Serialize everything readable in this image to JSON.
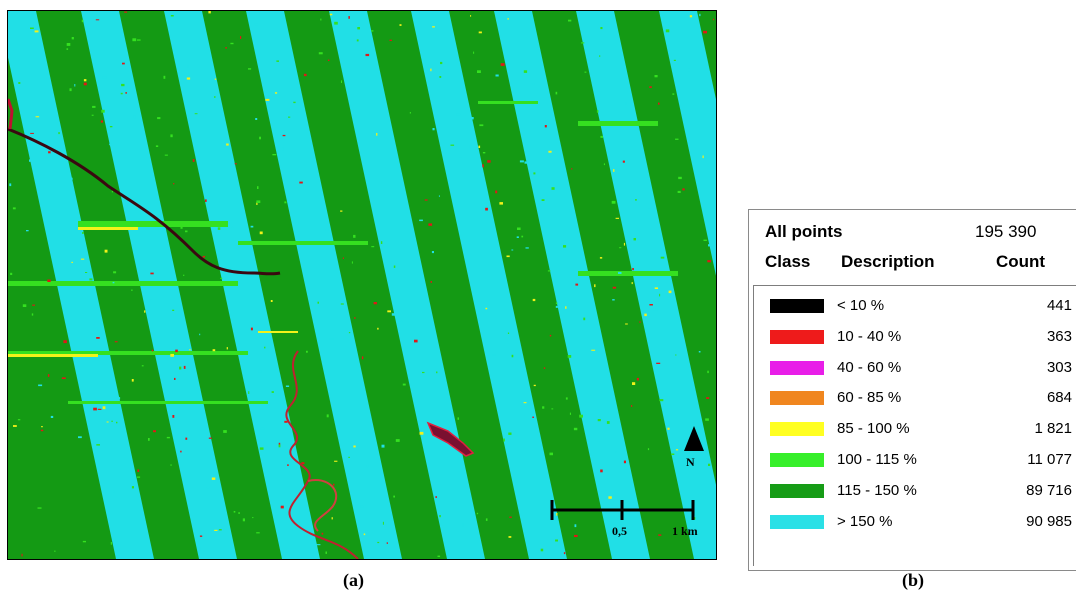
{
  "panel_a": {
    "caption": "(a)",
    "north_label": "N",
    "scale_label_mid": "0,5",
    "scale_label_end": "1 km",
    "colors": {
      "cyan": "#21dfe6",
      "dark_green": "#149a14",
      "light_green": "#35e020",
      "yellow": "#f2f21a",
      "red": "#e01818",
      "magenta": "#e020e0",
      "black": "#000000"
    }
  },
  "panel_b": {
    "caption": "(b)",
    "all_points_label": "All points",
    "all_points_count": "195 390",
    "header": {
      "class": "Class",
      "description": "Description",
      "count": "Count"
    },
    "rows": [
      {
        "color": "#000000",
        "description": "< 10 %",
        "count": "441"
      },
      {
        "color": "#ee1b1b",
        "description": "10 - 40 %",
        "count": "363"
      },
      {
        "color": "#e81ee8",
        "description": "40 - 60 %",
        "count": "303"
      },
      {
        "color": "#f0861f",
        "description": "60 - 85 %",
        "count": "684"
      },
      {
        "color": "#ffff22",
        "description": "85 - 100 %",
        "count": "1 821"
      },
      {
        "color": "#37ef2a",
        "description": "100 - 115 %",
        "count": "11 077"
      },
      {
        "color": "#169c16",
        "description": "115 - 150 %",
        "count": "89 716"
      },
      {
        "color": "#2ae0e6",
        "description": "> 150 %",
        "count": "90 985"
      }
    ]
  }
}
